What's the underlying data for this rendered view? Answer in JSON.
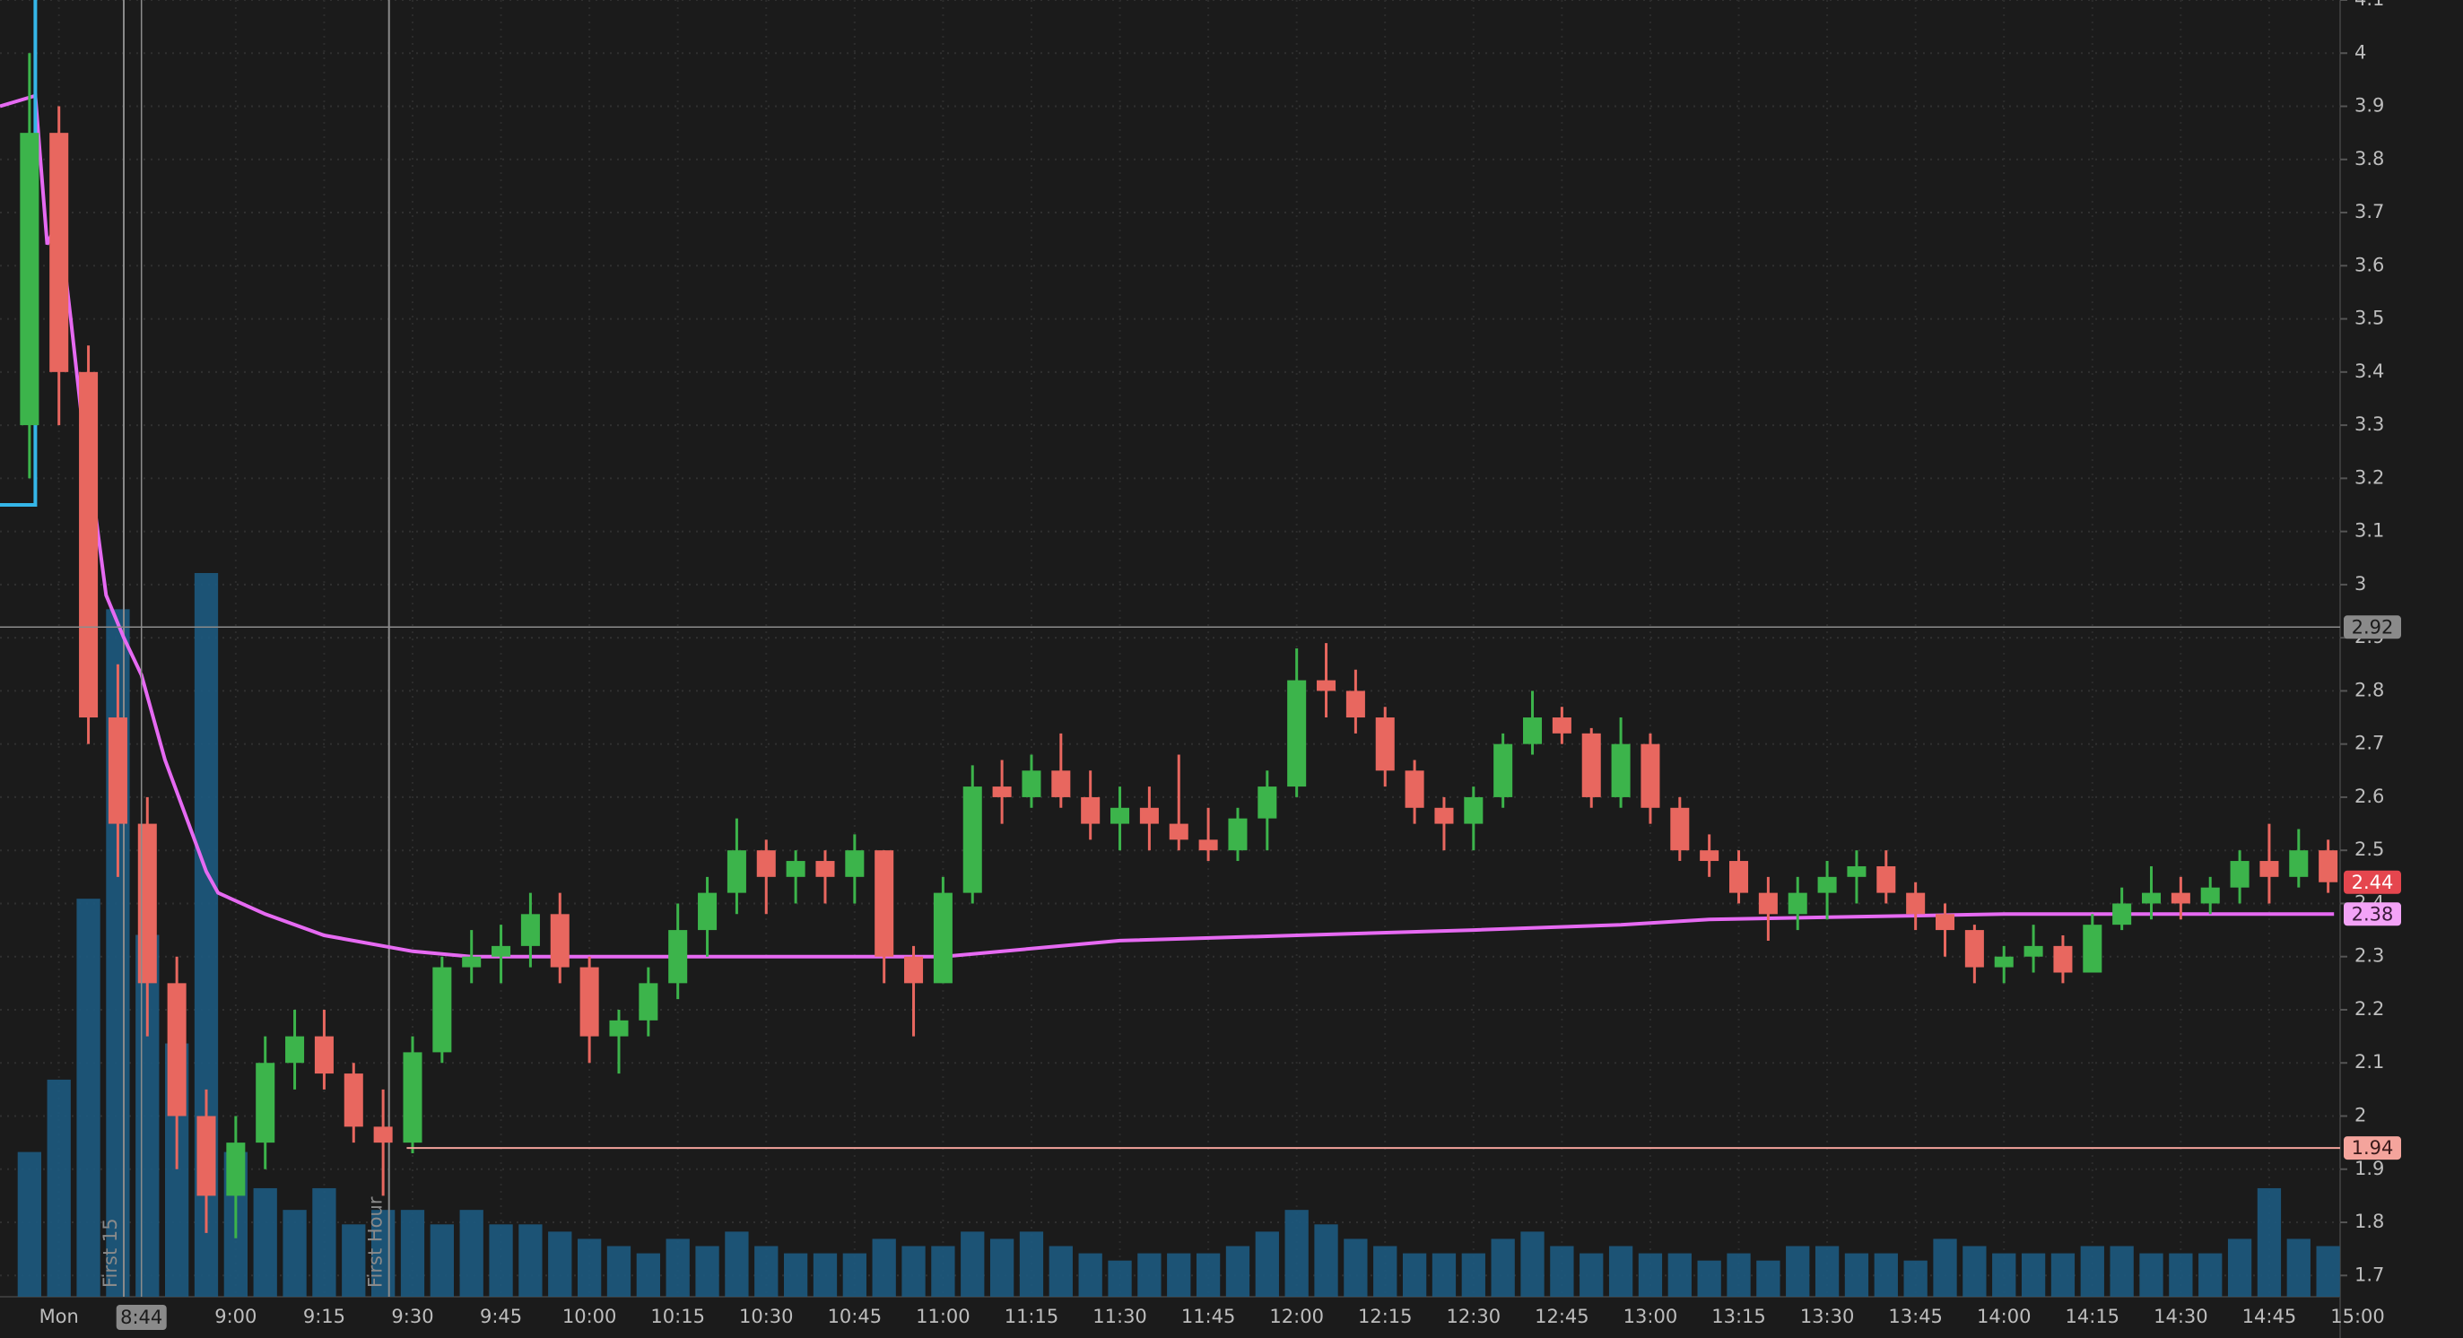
{
  "chart_data": {
    "type": "candlestick",
    "x": [
      505,
      510,
      515,
      520,
      525,
      530,
      535,
      540,
      545,
      550,
      555,
      560,
      565,
      570,
      575,
      580,
      585,
      590,
      595,
      600,
      605,
      610,
      615,
      620,
      625,
      630,
      635,
      640,
      645,
      650,
      655,
      660,
      665,
      670,
      675,
      680,
      685,
      690,
      695,
      700,
      705,
      710,
      715,
      720,
      725,
      730,
      735,
      740,
      745,
      750,
      755,
      760,
      765,
      770,
      775,
      780,
      785,
      790,
      795,
      800,
      805,
      810,
      815,
      820,
      825,
      830,
      835,
      840,
      845,
      850,
      855,
      860,
      865,
      870,
      875,
      880,
      885,
      890,
      895
    ],
    "open": [
      3.3,
      3.85,
      3.4,
      2.75,
      2.55,
      2.25,
      2.0,
      1.85,
      1.95,
      2.1,
      2.15,
      2.08,
      1.98,
      1.95,
      2.12,
      2.28,
      2.3,
      2.32,
      2.38,
      2.28,
      2.15,
      2.18,
      2.25,
      2.35,
      2.42,
      2.5,
      2.45,
      2.48,
      2.45,
      2.5,
      2.3,
      2.25,
      2.42,
      2.62,
      2.6,
      2.65,
      2.6,
      2.55,
      2.58,
      2.55,
      2.52,
      2.5,
      2.56,
      2.62,
      2.82,
      2.8,
      2.75,
      2.65,
      2.58,
      2.55,
      2.6,
      2.7,
      2.75,
      2.72,
      2.6,
      2.7,
      2.58,
      2.5,
      2.48,
      2.42,
      2.38,
      2.42,
      2.45,
      2.47,
      2.42,
      2.38,
      2.35,
      2.28,
      2.3,
      2.32,
      2.27,
      2.36,
      2.4,
      2.42,
      2.4,
      2.43,
      2.48,
      2.45,
      2.5
    ],
    "high": [
      4.0,
      3.9,
      3.45,
      2.85,
      2.6,
      2.3,
      2.05,
      2.0,
      2.15,
      2.2,
      2.2,
      2.1,
      2.05,
      2.15,
      2.3,
      2.35,
      2.36,
      2.42,
      2.42,
      2.3,
      2.2,
      2.28,
      2.4,
      2.45,
      2.56,
      2.52,
      2.5,
      2.5,
      2.53,
      2.5,
      2.32,
      2.45,
      2.66,
      2.67,
      2.68,
      2.72,
      2.65,
      2.62,
      2.62,
      2.68,
      2.58,
      2.58,
      2.65,
      2.88,
      2.89,
      2.84,
      2.77,
      2.67,
      2.6,
      2.62,
      2.72,
      2.8,
      2.77,
      2.73,
      2.75,
      2.72,
      2.6,
      2.53,
      2.5,
      2.45,
      2.45,
      2.48,
      2.5,
      2.5,
      2.44,
      2.4,
      2.36,
      2.32,
      2.36,
      2.34,
      2.38,
      2.43,
      2.47,
      2.45,
      2.45,
      2.5,
      2.55,
      2.54,
      2.52
    ],
    "low": [
      3.2,
      3.3,
      2.7,
      2.45,
      2.15,
      1.9,
      1.78,
      1.77,
      1.9,
      2.05,
      2.05,
      1.95,
      1.85,
      1.93,
      2.1,
      2.25,
      2.25,
      2.28,
      2.25,
      2.1,
      2.08,
      2.15,
      2.22,
      2.3,
      2.38,
      2.38,
      2.4,
      2.4,
      2.4,
      2.25,
      2.15,
      2.25,
      2.4,
      2.55,
      2.58,
      2.58,
      2.52,
      2.5,
      2.5,
      2.5,
      2.48,
      2.48,
      2.5,
      2.6,
      2.75,
      2.72,
      2.62,
      2.55,
      2.5,
      2.5,
      2.58,
      2.68,
      2.7,
      2.58,
      2.58,
      2.55,
      2.48,
      2.45,
      2.4,
      2.33,
      2.35,
      2.37,
      2.4,
      2.4,
      2.35,
      2.3,
      2.25,
      2.25,
      2.27,
      2.25,
      2.27,
      2.35,
      2.37,
      2.37,
      2.38,
      2.4,
      2.4,
      2.43,
      2.42
    ],
    "close": [
      3.85,
      3.4,
      2.75,
      2.55,
      2.25,
      2.0,
      1.85,
      1.95,
      2.1,
      2.15,
      2.08,
      1.98,
      1.95,
      2.12,
      2.28,
      2.3,
      2.32,
      2.38,
      2.28,
      2.15,
      2.18,
      2.25,
      2.35,
      2.42,
      2.5,
      2.45,
      2.48,
      2.45,
      2.5,
      2.3,
      2.25,
      2.42,
      2.62,
      2.6,
      2.65,
      2.6,
      2.55,
      2.58,
      2.55,
      2.52,
      2.5,
      2.56,
      2.62,
      2.82,
      2.8,
      2.75,
      2.65,
      2.58,
      2.55,
      2.6,
      2.7,
      2.75,
      2.72,
      2.6,
      2.7,
      2.58,
      2.5,
      2.48,
      2.42,
      2.38,
      2.42,
      2.45,
      2.47,
      2.42,
      2.38,
      2.35,
      2.28,
      2.3,
      2.32,
      2.27,
      2.36,
      2.4,
      2.42,
      2.4,
      2.43,
      2.48,
      2.45,
      2.5,
      2.44
    ],
    "volume": [
      20,
      30,
      55,
      95,
      50,
      35,
      100,
      20,
      15,
      12,
      15,
      10,
      12,
      12,
      10,
      12,
      10,
      10,
      9,
      8,
      7,
      6,
      8,
      7,
      9,
      7,
      6,
      6,
      6,
      8,
      7,
      7,
      9,
      8,
      9,
      7,
      6,
      5,
      6,
      6,
      6,
      7,
      9,
      12,
      10,
      8,
      7,
      6,
      6,
      6,
      8,
      9,
      7,
      6,
      7,
      6,
      6,
      5,
      6,
      5,
      7,
      7,
      6,
      6,
      5,
      8,
      7,
      6,
      6,
      6,
      7,
      7,
      6,
      6,
      6,
      8,
      15,
      8,
      7
    ],
    "vlim": [
      0,
      100
    ],
    "up_color": "#3cb44b",
    "down_color": "#e8675f",
    "volume_color": "#1d5a80",
    "xlim": [
      500,
      900
    ],
    "ylim": [
      1.66,
      4.1
    ],
    "xticks": [
      {
        "value": 510,
        "label": "Mon"
      },
      {
        "value": 540,
        "label": "9:00"
      },
      {
        "value": 555,
        "label": "9:15"
      },
      {
        "value": 570,
        "label": "9:30"
      },
      {
        "value": 585,
        "label": "9:45"
      },
      {
        "value": 600,
        "label": "10:00"
      },
      {
        "value": 615,
        "label": "10:15"
      },
      {
        "value": 630,
        "label": "10:30"
      },
      {
        "value": 645,
        "label": "10:45"
      },
      {
        "value": 660,
        "label": "11:00"
      },
      {
        "value": 675,
        "label": "11:15"
      },
      {
        "value": 690,
        "label": "11:30"
      },
      {
        "value": 705,
        "label": "11:45"
      },
      {
        "value": 720,
        "label": "12:00"
      },
      {
        "value": 735,
        "label": "12:15"
      },
      {
        "value": 750,
        "label": "12:30"
      },
      {
        "value": 765,
        "label": "12:45"
      },
      {
        "value": 780,
        "label": "13:00"
      },
      {
        "value": 795,
        "label": "13:15"
      },
      {
        "value": 810,
        "label": "13:30"
      },
      {
        "value": 825,
        "label": "13:45"
      },
      {
        "value": 840,
        "label": "14:00"
      },
      {
        "value": 855,
        "label": "14:15"
      },
      {
        "value": 870,
        "label": "14:30"
      },
      {
        "value": 885,
        "label": "14:45"
      },
      {
        "value": 900,
        "label": "15:00"
      }
    ],
    "yticks": [
      1.7,
      1.8,
      1.9,
      2,
      2.1,
      2.2,
      2.3,
      2.4,
      2.5,
      2.6,
      2.7,
      2.8,
      2.9,
      3,
      3.1,
      3.2,
      3.3,
      3.4,
      3.5,
      3.6,
      3.7,
      3.8,
      3.9,
      4,
      4.1
    ],
    "grid": true,
    "overlays": [
      {
        "color": "#e66af2",
        "x": [
          500,
          506,
          508,
          510,
          512,
          514,
          516,
          518,
          521,
          524,
          528,
          532,
          535,
          537,
          545,
          555,
          570,
          580,
          660,
          690,
          720,
          750,
          775,
          790,
          840,
          896
        ],
        "values": [
          3.9,
          3.92,
          3.64,
          3.69,
          3.5,
          3.3,
          3.15,
          2.98,
          2.9,
          2.83,
          2.67,
          2.55,
          2.46,
          2.42,
          2.38,
          2.34,
          2.31,
          2.3,
          2.3,
          2.33,
          2.34,
          2.35,
          2.36,
          2.37,
          2.38,
          2.38
        ]
      },
      {
        "color": "#35b6e8",
        "x": [
          500,
          506,
          506
        ],
        "values": [
          3.15,
          3.15,
          4.1
        ]
      }
    ],
    "annotations": [
      {
        "label": "First 15",
        "x": 521
      },
      {
        "label": "First Hour",
        "x": 566
      }
    ],
    "level": {
      "value": 1.94,
      "x_from": 569,
      "color": "#f4a49c"
    },
    "crosshair": {
      "x": {
        "value": 524,
        "label": "8:44"
      },
      "y": 2.92
    },
    "price_tags": [
      {
        "value": 2.44,
        "color": "#e5464e"
      },
      {
        "value": 2.38,
        "color": "#f3a3f7"
      }
    ]
  }
}
